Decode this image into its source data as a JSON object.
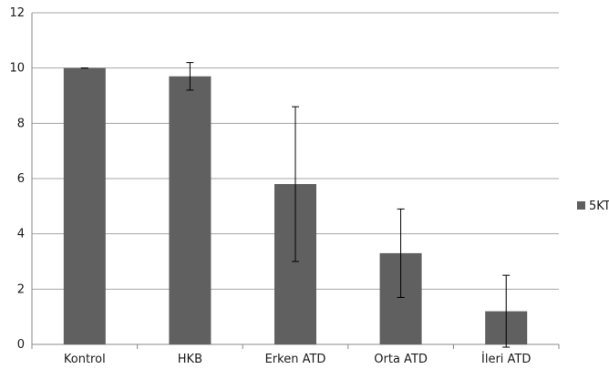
{
  "chart_data": {
    "type": "bar",
    "categories": [
      "Kontrol",
      "HKB",
      "Erken ATD",
      "Orta ATD",
      "İleri ATD"
    ],
    "series": [
      {
        "name": "5KT",
        "values": [
          10.0,
          9.7,
          5.8,
          3.3,
          1.2
        ],
        "error_low": [
          10.0,
          9.2,
          3.0,
          1.7,
          -0.1
        ],
        "error_high": [
          10.0,
          10.2,
          8.6,
          4.9,
          2.5
        ]
      }
    ],
    "ylim": [
      0,
      12
    ],
    "yticks": [
      "0",
      "2",
      "4",
      "6",
      "8",
      "10",
      "12"
    ],
    "grid": true,
    "legend_position": "right",
    "colors": {
      "bar": "#606060",
      "grid": "#a6a6a6",
      "axis": "#888888",
      "error_bar": "#000000"
    }
  }
}
